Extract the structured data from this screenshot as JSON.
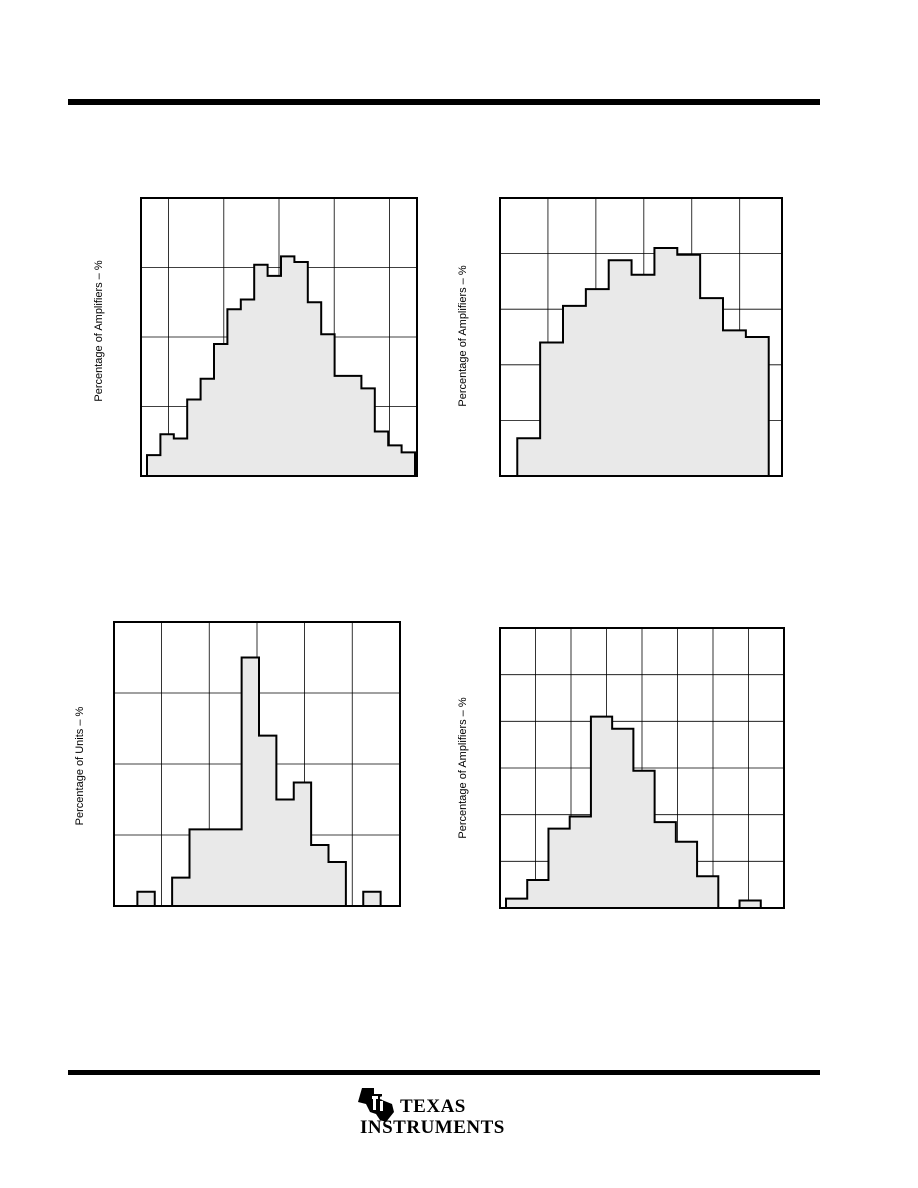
{
  "page": {},
  "charts": [
    {
      "id": "chart-1",
      "ylabel": "Percentage of Amplifiers – %",
      "chart_data": {
        "type": "bar",
        "style": "step-histogram",
        "ylabel": "Percentage of Amplifiers – %",
        "ylim": [
          0,
          20
        ],
        "grid": true,
        "values": [
          1.5,
          3,
          2.7,
          5.5,
          7,
          9.5,
          12,
          12.7,
          15.2,
          14.4,
          15.8,
          15.4,
          12.5,
          10.2,
          7.2,
          7.2,
          6.3,
          3.2,
          2.2,
          1.7
        ]
      }
    },
    {
      "id": "chart-2",
      "ylabel": "Percentage of Amplifiers – %",
      "chart_data": {
        "type": "bar",
        "style": "step-histogram",
        "ylabel": "Percentage of Amplifiers – %",
        "ylim": [
          0,
          25
        ],
        "grid": true,
        "values": [
          3.4,
          12,
          15.3,
          16.8,
          19.4,
          18.1,
          20.5,
          19.9,
          16,
          13.1,
          12.5
        ]
      }
    },
    {
      "id": "chart-3",
      "ylabel": "Percentage of Units – %",
      "chart_data": {
        "type": "bar",
        "style": "step-histogram",
        "ylabel": "Percentage of Units – %",
        "ylim": [
          0,
          20
        ],
        "grid": true,
        "values": [
          0,
          1,
          0,
          2,
          5.4,
          5.4,
          5.4,
          17.5,
          12,
          7.5,
          8.7,
          4.3,
          3.1,
          0,
          1,
          0
        ]
      }
    },
    {
      "id": "chart-4",
      "ylabel": "Percentage of Amplifiers – %",
      "chart_data": {
        "type": "bar",
        "style": "step-histogram",
        "ylabel": "Percentage of Amplifiers – %",
        "ylim": [
          0,
          30
        ],
        "grid": true,
        "values": [
          1,
          3,
          8.5,
          9.8,
          20.5,
          19.2,
          14.7,
          9.2,
          7.1,
          3.4,
          0,
          0.8,
          0
        ]
      }
    }
  ],
  "logo": {
    "line1": "TEXAS",
    "line2": "INSTRUMENTS",
    "icon": "ti-state-logo-icon"
  }
}
